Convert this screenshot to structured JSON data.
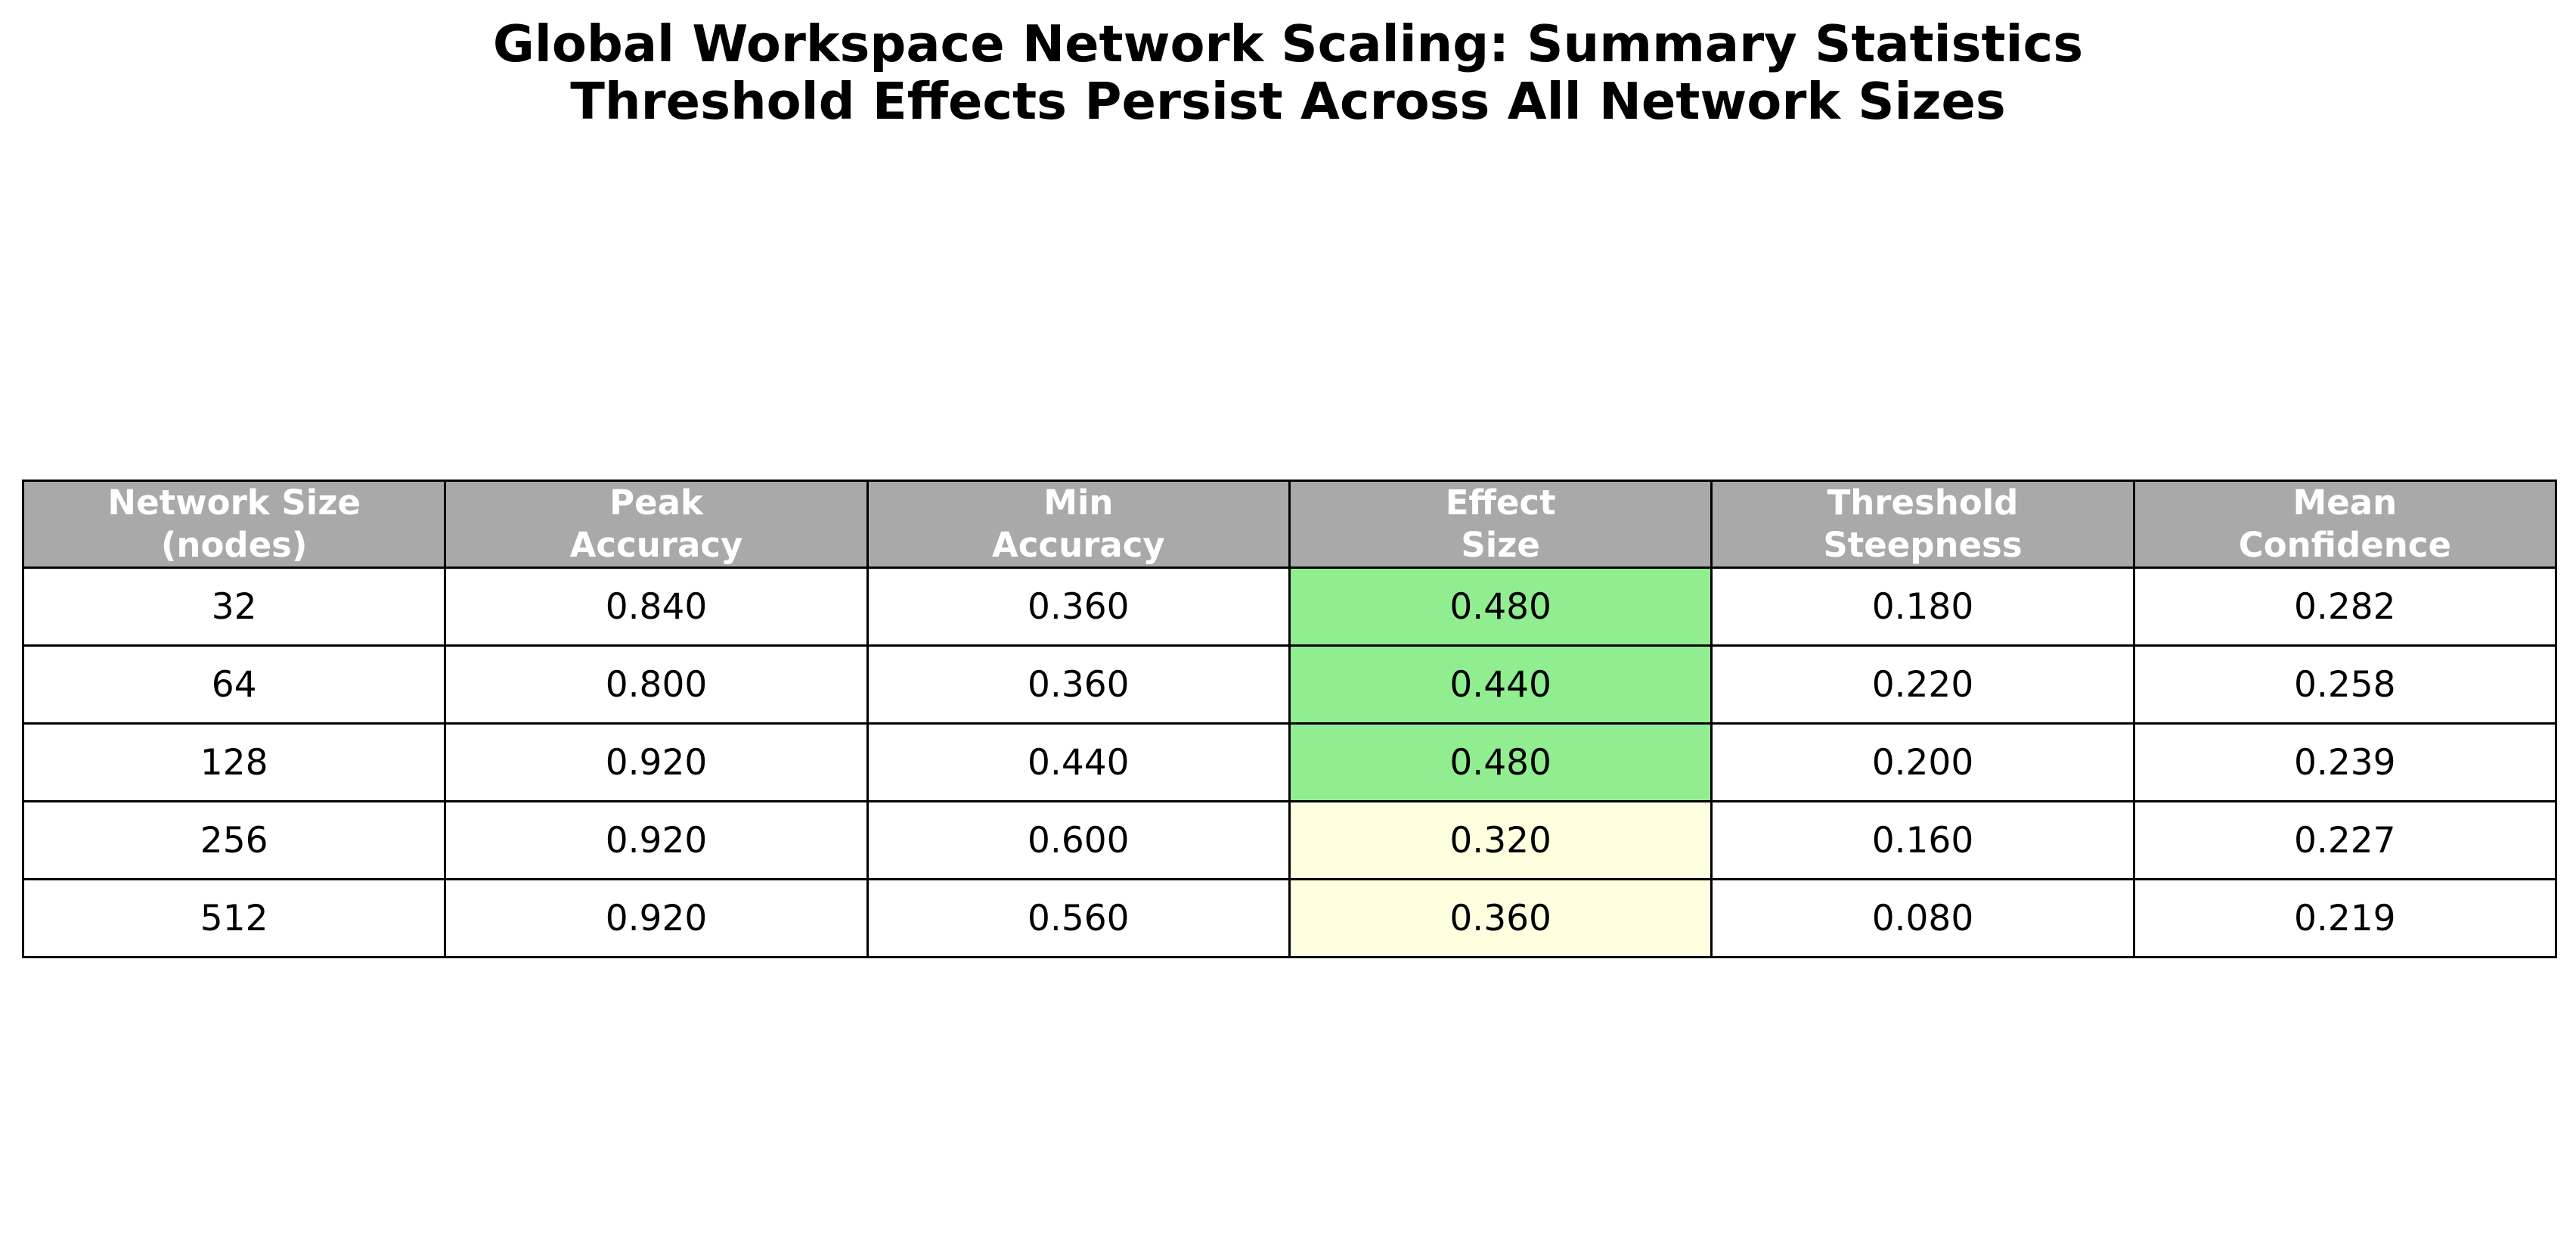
{
  "title": {
    "line1": "Global Workspace Network Scaling: Summary Statistics",
    "line2": "Threshold Effects Persist Across All Network Sizes"
  },
  "colors": {
    "header_bg": "#a9a9a9",
    "header_text": "#ffffff",
    "effect_high": "#90ee90",
    "effect_low": "#ffffe0",
    "cell_bg": "#ffffff"
  },
  "chart_data": {
    "type": "table",
    "title": "Global Workspace Network Scaling: Summary Statistics\nThreshold Effects Persist Across All Network Sizes",
    "columns": [
      [
        "Network Size",
        "(nodes)"
      ],
      [
        "Peak",
        "Accuracy"
      ],
      [
        "Min",
        "Accuracy"
      ],
      [
        "Effect",
        "Size"
      ],
      [
        "Threshold",
        "Steepness"
      ],
      [
        "Mean",
        "Confidence"
      ]
    ],
    "rows": [
      [
        "32",
        "0.840",
        "0.360",
        "0.480",
        "0.180",
        "0.282"
      ],
      [
        "64",
        "0.800",
        "0.360",
        "0.440",
        "0.220",
        "0.258"
      ],
      [
        "128",
        "0.920",
        "0.440",
        "0.480",
        "0.200",
        "0.239"
      ],
      [
        "256",
        "0.920",
        "0.600",
        "0.320",
        "0.160",
        "0.227"
      ],
      [
        "512",
        "0.920",
        "0.560",
        "0.360",
        "0.080",
        "0.219"
      ]
    ],
    "effect_size_highlight": [
      "high",
      "high",
      "high",
      "low",
      "low"
    ]
  }
}
